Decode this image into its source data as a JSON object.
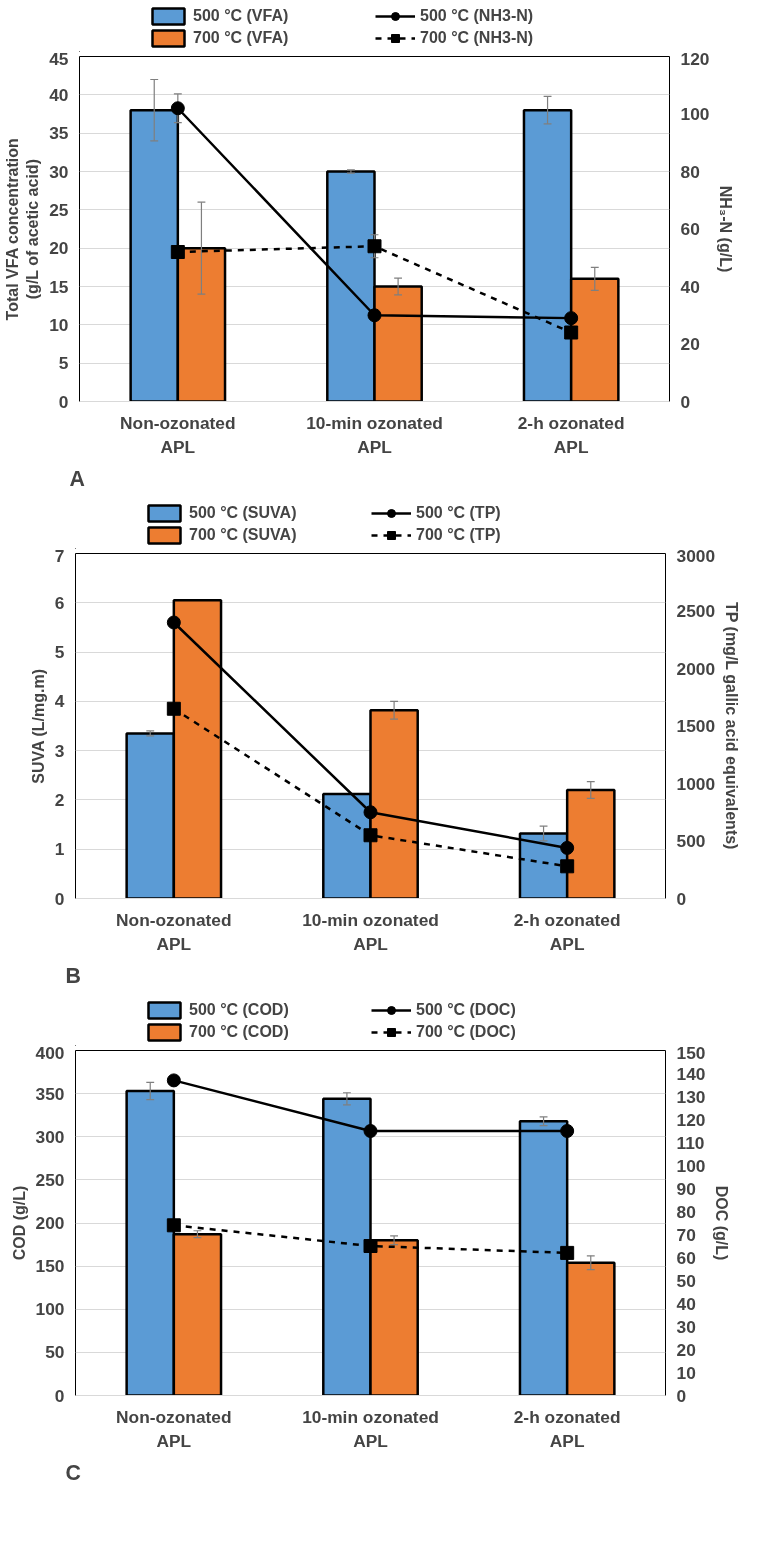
{
  "chart_data": [
    {
      "type": "bar",
      "categories": [
        "Non-ozonated APL",
        "10-min ozonated APL",
        "2-h ozonated APL"
      ],
      "ylabel": "Total VFA concentration\n(g/L of acetic acid)",
      "y2label": "NH₃-N (g/L)",
      "ylim": [
        0,
        45
      ],
      "yticks": [
        0,
        5,
        10,
        15,
        20,
        25,
        30,
        35,
        40,
        45
      ],
      "y2lim": [
        0,
        120
      ],
      "y2ticks": [
        0,
        20,
        40,
        60,
        80,
        100,
        120
      ],
      "grid": "y",
      "legend": "top",
      "annotations": [
        "A"
      ],
      "series": [
        {
          "name": "500 °C (VFA)",
          "color": "#5b9bd5",
          "values": [
            38,
            30,
            38
          ],
          "errors": [
            4,
            0.2,
            1.8
          ]
        },
        {
          "name": "700 °C (VFA)",
          "color": "#ed7d31",
          "values": [
            20,
            15,
            16
          ],
          "errors": [
            6,
            1.1,
            1.5
          ]
        },
        {
          "name": "500 °C (NH3-N)",
          "type": "line",
          "axis": "y2",
          "color": "#000000",
          "marker": "circle",
          "line_style": "solid",
          "values": [
            102,
            30,
            29
          ],
          "errors": [
            5,
            null,
            null
          ]
        },
        {
          "name": "700 °C (NH3-N)",
          "type": "line",
          "axis": "y2",
          "color": "#000000",
          "marker": "square",
          "line_style": "dashed",
          "values": [
            52,
            54,
            24
          ],
          "errors": [
            null,
            4,
            null
          ]
        }
      ]
    },
    {
      "type": "bar",
      "categories": [
        "Non-ozonated APL",
        "10-min ozonated APL",
        "2-h ozonated APL"
      ],
      "ylabel": "SUVA (L/mg.m)",
      "y2label": "TP (mg/L gallic acid equivalents)",
      "ylim": [
        0,
        7
      ],
      "yticks": [
        0,
        1,
        2,
        3,
        4,
        5,
        6,
        7
      ],
      "y2lim": [
        0,
        3000
      ],
      "y2ticks": [
        0,
        500,
        1000,
        1500,
        2000,
        2500,
        3000
      ],
      "grid": "y",
      "legend": "top",
      "annotations": [
        "B"
      ],
      "series": [
        {
          "name": "500 °C (SUVA)",
          "color": "#5b9bd5",
          "values": [
            3.35,
            2.12,
            1.32
          ],
          "errors": [
            0.05,
            null,
            0.15
          ]
        },
        {
          "name": "700 °C (SUVA)",
          "color": "#ed7d31",
          "values": [
            6.05,
            3.82,
            2.2
          ],
          "errors": [
            null,
            0.18,
            0.17
          ]
        },
        {
          "name": "500 °C (TP)",
          "type": "line",
          "axis": "y2",
          "color": "#000000",
          "marker": "circle",
          "line_style": "solid",
          "values": [
            2400,
            750,
            440
          ]
        },
        {
          "name": "700 °C (TP)",
          "type": "line",
          "axis": "y2",
          "color": "#000000",
          "marker": "square",
          "line_style": "dashed",
          "values": [
            1650,
            550,
            280
          ]
        }
      ]
    },
    {
      "type": "bar",
      "categories": [
        "Non-ozonated APL",
        "10-min ozonated APL",
        "2-h ozonated APL"
      ],
      "ylabel": "COD (g/L)",
      "y2label": "DOC (g/L)",
      "ylim": [
        0,
        400
      ],
      "yticks": [
        0,
        50,
        100,
        150,
        200,
        250,
        300,
        350,
        400
      ],
      "y2lim": [
        0,
        150
      ],
      "y2ticks": [
        0,
        10,
        20,
        30,
        40,
        50,
        60,
        70,
        80,
        90,
        100,
        110,
        120,
        130,
        140,
        150
      ],
      "grid": "y",
      "legend": "top",
      "annotations": [
        "C"
      ],
      "series": [
        {
          "name": "500 °C (COD)",
          "color": "#5b9bd5",
          "values": [
            353,
            344,
            318
          ],
          "errors": [
            10,
            7,
            5
          ]
        },
        {
          "name": "700 °C (COD)",
          "color": "#ed7d31",
          "values": [
            187,
            180,
            154
          ],
          "errors": [
            4,
            5,
            8
          ]
        },
        {
          "name": "500 °C (DOC)",
          "type": "line",
          "axis": "y2",
          "color": "#000000",
          "marker": "circle",
          "line_style": "solid",
          "values": [
            137,
            115,
            115
          ]
        },
        {
          "name": "700 °C (DOC)",
          "type": "line",
          "axis": "y2",
          "color": "#000000",
          "marker": "square",
          "line_style": "dashed",
          "values": [
            74,
            65,
            62
          ]
        }
      ]
    }
  ]
}
